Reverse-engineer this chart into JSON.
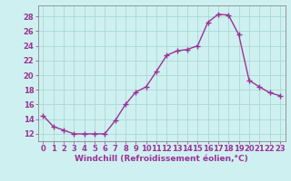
{
  "x": [
    0,
    1,
    2,
    3,
    4,
    5,
    6,
    7,
    8,
    9,
    10,
    11,
    12,
    13,
    14,
    15,
    16,
    17,
    18,
    19,
    20,
    21,
    22,
    23
  ],
  "y": [
    14.5,
    13.0,
    12.5,
    12.0,
    12.0,
    12.0,
    12.0,
    13.8,
    16.0,
    17.7,
    18.4,
    20.5,
    22.7,
    23.3,
    23.5,
    24.0,
    27.2,
    28.3,
    28.2,
    25.5,
    19.3,
    18.4,
    17.6,
    17.2
  ],
  "line_color": "#993399",
  "marker": "+",
  "markersize": 4,
  "linewidth": 1.0,
  "bg_color": "#cff0f0",
  "grid_color": "#aad8d8",
  "xlabel": "Windchill (Refroidissement éolien,°C)",
  "xlabel_fontsize": 6.5,
  "tick_fontsize": 6.0,
  "ylim": [
    11.0,
    29.5
  ],
  "yticks": [
    12,
    14,
    16,
    18,
    20,
    22,
    24,
    26,
    28
  ],
  "xlim": [
    -0.5,
    23.5
  ],
  "xticks": [
    0,
    1,
    2,
    3,
    4,
    5,
    6,
    7,
    8,
    9,
    10,
    11,
    12,
    13,
    14,
    15,
    16,
    17,
    18,
    19,
    20,
    21,
    22,
    23
  ]
}
